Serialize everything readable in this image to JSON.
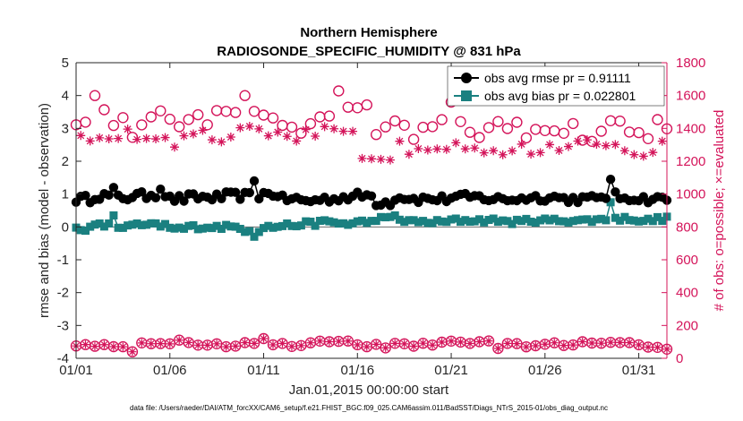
{
  "chart_data": {
    "type": "line",
    "title": "Northern Hemisphere",
    "subtitle": "RADIOSONDE_SPECIFIC_HUMIDITY @ 831 hPa",
    "xlabel": "Jan.01,2015 00:00:00 start",
    "ylabel": "rmse and bias (model - observation)",
    "ylabel_right": "# of obs: o=possible; ×=evaluated",
    "xlim": [
      0,
      31.5
    ],
    "ylim": [
      -4,
      5
    ],
    "ylim_right": [
      0,
      1800
    ],
    "x_ticks": [
      0,
      5,
      10,
      15,
      20,
      25,
      30
    ],
    "x_tick_labels": [
      "01/01",
      "01/06",
      "01/11",
      "01/16",
      "01/21",
      "01/26",
      "01/31"
    ],
    "y_ticks": [
      -4,
      -3,
      -2,
      -1,
      0,
      1,
      2,
      3,
      4,
      5
    ],
    "y_ticks_right": [
      0,
      200,
      400,
      600,
      800,
      1000,
      1200,
      1400,
      1600,
      1800
    ],
    "footnote": "data file: /Users/raeder/DAI/ATM_forcXX/CAM6_setup/f.e21.FHIST_BGC.f09_025.CAM6assim.011/BadSST/Diags_NTrS_2015-01/obs_diag_output.nc",
    "colors": {
      "rmse": "#000000",
      "bias": "#1a8080",
      "obs": "#d4145a",
      "zero_line": "#6b6b6b"
    },
    "legend": {
      "position": "top-right",
      "entries": [
        "obs avg rmse pr = 0.91111",
        "obs avg bias pr = 0.022801"
      ]
    },
    "rmse_day_means": [
      0.85,
      0.95,
      0.9,
      0.95,
      1.0,
      0.85,
      0.9,
      0.9,
      0.95,
      0.95,
      1.0,
      0.85,
      0.8,
      0.85,
      0.9,
      0.95,
      0.75,
      0.9,
      0.85,
      0.85,
      0.9,
      0.9,
      0.85,
      0.85,
      0.9,
      0.9,
      0.85,
      0.85,
      0.95,
      0.9,
      0.85,
      0.85
    ],
    "bias_day_means": [
      -0.05,
      0.05,
      0.0,
      0.05,
      0.05,
      -0.05,
      0.0,
      0.0,
      0.0,
      -0.1,
      0.0,
      0.05,
      0.1,
      0.15,
      0.1,
      0.15,
      0.25,
      0.2,
      0.15,
      0.15,
      0.2,
      0.2,
      0.2,
      0.15,
      0.2,
      0.2,
      0.2,
      0.2,
      0.25,
      0.25,
      0.2,
      0.25
    ],
    "possible_day_means": [
      1450,
      1500,
      1450,
      1400,
      1480,
      1420,
      1480,
      1470,
      1500,
      1550,
      1450,
      1450,
      1400,
      1480,
      1580,
      1500,
      1380,
      1400,
      1380,
      1420,
      1400,
      1380,
      1400,
      1420,
      1380,
      1400,
      1380,
      1370,
      1400,
      1420,
      1380,
      1400
    ],
    "evaluated_day_means": [
      1350,
      1360,
      1380,
      1360,
      1360,
      1330,
      1350,
      1340,
      1360,
      1380,
      1340,
      1310,
      1350,
      1380,
      1350,
      1230,
      1250,
      1280,
      1300,
      1310,
      1320,
      1290,
      1280,
      1300,
      1270,
      1270,
      1280,
      1290,
      1310,
      1280,
      1260,
      1280
    ],
    "obs_low_day_means": [
      85,
      80,
      75,
      90,
      95,
      100,
      90,
      85,
      80,
      85,
      75,
      80,
      85,
      100,
      95,
      80,
      75,
      85,
      80,
      90,
      95,
      90,
      95,
      85,
      80,
      90,
      85,
      90,
      95,
      85,
      80,
      55
    ],
    "rmse_spikes": [
      [
        9.5,
        1.4
      ],
      [
        28.5,
        1.45
      ],
      [
        2.0,
        1.2
      ],
      [
        4.5,
        1.15
      ]
    ],
    "bias_spikes": [
      [
        9.5,
        -0.3
      ],
      [
        28.5,
        0.75
      ],
      [
        2.0,
        0.35
      ],
      [
        17.0,
        0.35
      ]
    ],
    "possible_spikes": [
      [
        1.0,
        1600
      ],
      [
        9.0,
        1600
      ],
      [
        13.75,
        1620
      ],
      [
        14.75,
        1600
      ],
      [
        20.0,
        1560
      ]
    ],
    "evaluated_spikes": [
      [
        21.0,
        1220
      ],
      [
        22.5,
        1210
      ],
      [
        24.5,
        1220
      ],
      [
        30.5,
        1240
      ]
    ],
    "obs_low_spikes": [
      [
        3.0,
        40
      ],
      [
        7.75,
        130
      ],
      [
        10.0,
        120
      ],
      [
        22.5,
        60
      ]
    ]
  }
}
